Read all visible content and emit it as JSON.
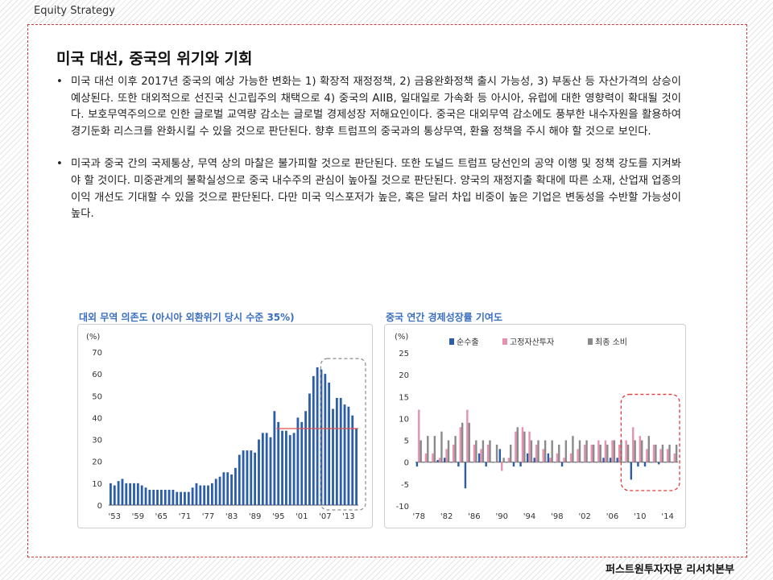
{
  "header": {
    "label": "Equity Strategy"
  },
  "footer": {
    "label": "퍼스트원투자자문 리서치본부"
  },
  "page": {
    "title": "미국 대선, 중국의 위기와 기회",
    "bullets": [
      "미국 대선 이후 2017년 중국의 예상 가능한 변화는 1) 확장적 재정정책, 2) 금융완화정책 출시 가능성, 3) 부동산 등 자산가격의 상승이 예상된다. 또한 대외적으로 선진국 신고립주의 채택으로 4) 중국의 AIIB, 일대일로 가속화 등 아시아, 유럽에 대한 영향력이 확대될 것이다. 보호무역주의으로 인한 글로벌 교역량 감소는 글로벌 경제성장 저해요인이다. 중국은 대외무역 감소에도 풍부한 내수자원을 활용하여 경기둔화 리스크를 완화시킬 수 있을 것으로 판단된다. 향후 트럼프의 중국과의 통상무역, 환율 정책을 주시 해야 할 것으로 보인다.",
      "미국과 중국 간의 국제통상, 무역 상의 마찰은 불가피할 것으로 판단된다. 또한 도널드 트럼프 당선인의 공약 이행 및 정책 강도를 지켜봐야 할 것이다. 미중관계의 불확실성으로 중국 내수주의 관심이 높아질 것으로 판단된다. 양국의 재정지출 확대에 따른 소재, 산업재 업종의 이익 개선도 기대할 수 있을 것으로 판단된다. 다만 미국 익스포저가 높은, 혹은 달러 차입 비중이 높은 기업은 변동성을 수반할 가능성이 높다."
    ]
  },
  "chart_data": [
    {
      "type": "bar",
      "title": "대외 무역 의존도 (아시아 외환위기 당시 수준 35%)",
      "ylabel": "(%)",
      "ylim": [
        0,
        70
      ],
      "yticks": [
        0,
        10,
        20,
        30,
        40,
        50,
        60,
        70
      ],
      "xtick_labels": [
        "'53",
        "'59",
        "'65",
        "'71",
        "'77",
        "'83",
        "'89",
        "'95",
        "'01",
        "'07",
        "'13"
      ],
      "reference_line": 35,
      "x": [
        1952,
        1953,
        1954,
        1955,
        1956,
        1957,
        1958,
        1959,
        1960,
        1961,
        1962,
        1963,
        1964,
        1965,
        1966,
        1967,
        1968,
        1969,
        1970,
        1971,
        1972,
        1973,
        1974,
        1975,
        1976,
        1977,
        1978,
        1979,
        1980,
        1981,
        1982,
        1983,
        1984,
        1985,
        1986,
        1987,
        1988,
        1989,
        1990,
        1991,
        1992,
        1993,
        1994,
        1995,
        1996,
        1997,
        1998,
        1999,
        2000,
        2001,
        2002,
        2003,
        2004,
        2005,
        2006,
        2007,
        2008,
        2009,
        2010,
        2011,
        2012,
        2013,
        2014,
        2015
      ],
      "values": [
        10,
        9,
        11,
        12,
        10,
        10,
        10,
        10,
        9,
        8,
        7,
        7,
        7,
        7,
        7,
        7,
        7,
        6,
        6,
        6,
        6,
        8,
        10,
        9,
        9,
        9,
        10,
        12,
        13,
        15,
        15,
        14,
        17,
        23,
        25,
        25,
        25,
        24,
        30,
        33,
        33,
        31,
        43,
        38,
        34,
        34,
        32,
        33,
        40,
        38,
        43,
        51,
        59,
        63,
        62,
        60,
        56,
        44,
        49,
        49,
        46,
        45,
        41,
        35
      ],
      "colors": {
        "bar": "#2b5da8",
        "reference": "#e0524e",
        "highlight": "#8c8c8c"
      }
    },
    {
      "type": "bar",
      "title": "중국 연간 경제성장률 기여도",
      "ylabel": "(%)",
      "ylim": [
        -10,
        25
      ],
      "yticks": [
        -10,
        -5,
        0,
        5,
        10,
        15,
        20,
        25
      ],
      "xtick_labels": [
        "'78",
        "'82",
        "'86",
        "'90",
        "'94",
        "'98",
        "'02",
        "'06",
        "'10",
        "'14"
      ],
      "x": [
        1978,
        1979,
        1980,
        1981,
        1982,
        1983,
        1984,
        1985,
        1986,
        1987,
        1988,
        1989,
        1990,
        1991,
        1992,
        1993,
        1994,
        1995,
        1996,
        1997,
        1998,
        1999,
        2000,
        2001,
        2002,
        2003,
        2004,
        2005,
        2006,
        2007,
        2008,
        2009,
        2010,
        2011,
        2012,
        2013,
        2014,
        2015
      ],
      "series": [
        {
          "name": "순수출",
          "color": "#2b5da8",
          "values": [
            -1,
            0,
            0,
            0.5,
            1,
            0,
            -1,
            -6,
            0,
            2,
            -1,
            0,
            3,
            0,
            -1,
            -1,
            2,
            1,
            0,
            2,
            0,
            -1,
            0,
            0,
            0,
            0,
            0,
            1,
            1,
            1,
            0,
            -4,
            -1,
            -1,
            0,
            -0.5,
            0,
            0
          ]
        },
        {
          "name": "고정자산투자",
          "color": "#e890b0",
          "values": [
            12,
            2,
            2,
            1,
            3,
            4,
            8,
            12,
            4,
            3,
            4,
            0,
            -2,
            1,
            7,
            8,
            7,
            4,
            3,
            1,
            2,
            1,
            2,
            3,
            4,
            4,
            5,
            5,
            5,
            4,
            5,
            8,
            6,
            3,
            4,
            3,
            3,
            2
          ]
        },
        {
          "name": "최종 소비",
          "color": "#8a8a8a",
          "values": [
            5,
            6,
            6,
            7,
            5,
            6,
            9,
            9,
            5,
            5,
            5,
            4,
            1,
            4,
            8,
            7,
            5,
            5,
            5,
            5,
            4,
            5,
            6,
            5,
            5,
            4,
            4,
            4,
            5,
            5,
            4,
            5,
            5,
            6,
            4,
            4,
            4,
            4
          ]
        }
      ],
      "colors": {
        "highlight": "#e03a3a"
      }
    }
  ]
}
